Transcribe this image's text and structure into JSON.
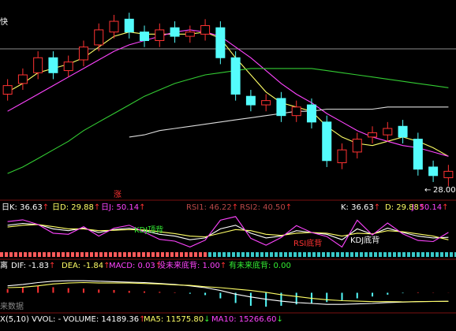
{
  "chart_data": [
    {
      "type": "candlestick",
      "open": [
        32.3,
        32.8,
        33.3,
        34.0,
        33.4,
        33.9,
        34.6,
        35.2,
        35.8,
        35.2,
        34.8,
        35.4,
        35.0,
        35.1,
        35.4,
        34.0,
        32.2,
        31.8,
        32.1,
        31.3,
        31.8,
        31.0,
        29.1,
        29.6,
        30.3,
        30.4,
        30.8,
        30.2,
        28.9,
        28.4
      ],
      "high": [
        33.0,
        33.5,
        34.3,
        34.3,
        34.1,
        34.8,
        35.6,
        36.0,
        36.1,
        35.5,
        35.6,
        35.7,
        35.5,
        35.8,
        35.7,
        34.3,
        32.5,
        32.3,
        32.4,
        32.0,
        32.1,
        31.3,
        30.0,
        30.5,
        30.8,
        31.0,
        31.1,
        30.5,
        29.2,
        29.0
      ],
      "low": [
        32.0,
        32.5,
        33.0,
        33.0,
        33.1,
        33.6,
        34.3,
        34.9,
        34.9,
        34.5,
        34.5,
        34.7,
        34.7,
        34.8,
        33.7,
        32.0,
        31.5,
        31.5,
        31.0,
        31.0,
        30.7,
        28.9,
        28.8,
        29.3,
        30.0,
        30.1,
        30.0,
        28.5,
        28.2,
        28.0
      ],
      "close": [
        32.7,
        33.2,
        34.0,
        33.3,
        33.8,
        34.5,
        35.3,
        35.7,
        35.2,
        34.8,
        35.3,
        35.0,
        35.2,
        35.5,
        34.0,
        32.3,
        31.8,
        32.0,
        31.3,
        31.7,
        31.0,
        29.2,
        29.7,
        30.2,
        30.5,
        30.7,
        30.3,
        28.8,
        28.5,
        28.7
      ],
      "up_color": "#ff3232",
      "down_color": "#54fcfc",
      "ylim": [
        27.5,
        36.4
      ],
      "series": [
        {
          "color": "#ffff66",
          "values": [
            32.4,
            32.8,
            33.3,
            33.5,
            33.7,
            34.0,
            34.5,
            35.0,
            35.2,
            35.1,
            35.1,
            35.1,
            35.1,
            35.2,
            34.9,
            34.0,
            33.2,
            32.4,
            31.9,
            31.7,
            31.5,
            30.8,
            30.3,
            30.0,
            29.9,
            30.1,
            30.3,
            30.1,
            29.8,
            29.4
          ]
        },
        {
          "color": "#ff44ff",
          "values": [
            31.5,
            31.9,
            32.3,
            32.7,
            33.1,
            33.5,
            33.9,
            34.3,
            34.6,
            34.8,
            35.0,
            35.2,
            35.3,
            35.2,
            35.0,
            34.5,
            34.0,
            33.4,
            32.8,
            32.3,
            31.9,
            31.4,
            31.0,
            30.6,
            30.3,
            30.1,
            29.9,
            29.8,
            29.6,
            29.4
          ]
        },
        {
          "color": "#33cc33",
          "values": [
            28.6,
            28.9,
            29.3,
            29.7,
            30.1,
            30.6,
            31.0,
            31.4,
            31.8,
            32.2,
            32.5,
            32.8,
            33.0,
            33.2,
            33.3,
            33.4,
            33.5,
            33.5,
            33.5,
            33.5,
            33.5,
            33.4,
            33.3,
            33.2,
            33.1,
            33.0,
            32.9,
            32.8,
            32.7,
            32.6
          ]
        },
        {
          "color": "#dddddd",
          "values": [
            null,
            null,
            null,
            null,
            null,
            null,
            null,
            null,
            30.3,
            30.4,
            30.6,
            30.7,
            30.8,
            30.9,
            31.0,
            31.1,
            31.2,
            31.3,
            31.4,
            31.5,
            31.5,
            31.6,
            31.6,
            31.6,
            31.6,
            31.7,
            31.7,
            31.7,
            31.7,
            31.7
          ]
        }
      ]
    },
    {
      "type": "line",
      "ylim": [
        0,
        100
      ],
      "series": [
        {
          "color": "#ffffff",
          "values": [
            70,
            75,
            72,
            60,
            55,
            62,
            50,
            58,
            62,
            55,
            45,
            40,
            30,
            35,
            60,
            70,
            48,
            35,
            40,
            55,
            50,
            45,
            30,
            60,
            45,
            62,
            50,
            40,
            35,
            36.63
          ]
        },
        {
          "color": "#ffff66",
          "values": [
            65,
            70,
            72,
            66,
            60,
            60,
            55,
            56,
            58,
            57,
            52,
            47,
            40,
            38,
            48,
            58,
            55,
            45,
            42,
            48,
            50,
            48,
            40,
            48,
            46,
            55,
            52,
            46,
            40,
            29.88
          ]
        },
        {
          "color": "#ff44ff",
          "values": [
            80,
            85,
            72,
            48,
            45,
            66,
            40,
            62,
            70,
            51,
            31,
            26,
            10,
            29,
            84,
            94,
            34,
            15,
            36,
            69,
            50,
            39,
            10,
            84,
            43,
            76,
            46,
            28,
            25,
            50.14
          ]
        }
      ]
    },
    {
      "type": "macd",
      "ylim": [
        -4.5,
        4.5
      ],
      "up_color": "#ff3232",
      "down_color": "#54fcfc",
      "values": [
        0.8,
        1.2,
        1.5,
        1.2,
        1.0,
        0.9,
        0.7,
        0.6,
        0.4,
        0.3,
        0.2,
        0.1,
        -0.2,
        -0.5,
        -1.2,
        -2.2,
        -2.8,
        -3.0,
        -2.8,
        -2.5,
        -2.2,
        -2.0,
        -1.6,
        -1.2,
        -0.8,
        -0.4,
        -0.1,
        0.1,
        0.05,
        0.03
      ],
      "series": [
        {
          "color": "#ffffff",
          "values": [
            1.5,
            1.8,
            2.2,
            2.5,
            2.6,
            2.6,
            2.5,
            2.4,
            2.3,
            2.2,
            2.0,
            1.8,
            1.5,
            1.1,
            0.5,
            -0.3,
            -0.9,
            -1.4,
            -1.8,
            -2.1,
            -2.3,
            -2.5,
            -2.5,
            -2.4,
            -2.3,
            -2.1,
            -2.0,
            -1.9,
            -1.85,
            -1.83
          ]
        },
        {
          "color": "#ffff66",
          "values": [
            1.1,
            1.2,
            1.5,
            1.9,
            2.1,
            2.2,
            2.1,
            2.1,
            2.1,
            2.0,
            1.9,
            1.7,
            1.6,
            1.3,
            1.1,
            0.8,
            0.5,
            0.1,
            -0.4,
            -0.8,
            -1.2,
            -1.5,
            -1.7,
            -1.8,
            -1.9,
            -1.9,
            -1.95,
            -1.9,
            -1.87,
            -1.84
          ]
        }
      ]
    }
  ],
  "labels": {
    "main_left": "快",
    "rise": "涨",
    "low_arrow": "←",
    "low_price": "28.00",
    "kdj_top": "KDJ顶背",
    "rsi_bottom": "RSI底背",
    "kdj_bottom": "KDJ底背",
    "macd_data": "来数据"
  },
  "kdj_header": [
    {
      "text": "日K: 36.63",
      "arrow": "↑",
      "color": "#ffffff"
    },
    {
      "text": "日D: 29.88",
      "arrow": "↑",
      "color": "#ffff66"
    },
    {
      "text": "日J: 50.14",
      "arrow": "↑",
      "color": "#ff44ff"
    },
    {
      "text": "RSI1: 46.22",
      "arrow": "↑",
      "color": "#b84848"
    },
    {
      "text": "RSI2: 40.50",
      "arrow": "↑",
      "color": "#b84848"
    },
    {
      "text": "K: 36.63",
      "arrow": "↑",
      "color": "#ffffff"
    },
    {
      "text": "D: 29.88",
      "arrow": "↑",
      "color": "#ffff66"
    },
    {
      "text": "J: 50.14",
      "arrow": "↑",
      "color": "#ff44ff"
    }
  ],
  "macd_header": [
    {
      "text": "离",
      "color": "#ffffff"
    },
    {
      "text": "DIF: -1.83",
      "arrow": "↑",
      "color": "#ffffff"
    },
    {
      "text": "DEA: -1.84",
      "arrow": "↑",
      "color": "#ffff66"
    },
    {
      "text": "MACD: 0.03",
      "arrow": "↑",
      "color": "#ff44ff"
    },
    {
      "text": "没未来底背: 1.00",
      "arrow": "↑",
      "color": "#ff44ff"
    },
    {
      "text": "有未来底背: 0.00",
      "color": "#33ee33"
    }
  ],
  "volume_header": [
    {
      "text": "X(5,10) VVOL: -",
      "color": "#ffffff"
    },
    {
      "text": "VOLUME: 14189.36",
      "arrow": "↑",
      "color": "#ffffff"
    },
    {
      "text": "MA5: 11575.80",
      "arrow": "↓",
      "color": "#ffff66"
    },
    {
      "text": "MA10: 15266.60",
      "arrow": "↓",
      "color": "#ff44ff"
    }
  ]
}
